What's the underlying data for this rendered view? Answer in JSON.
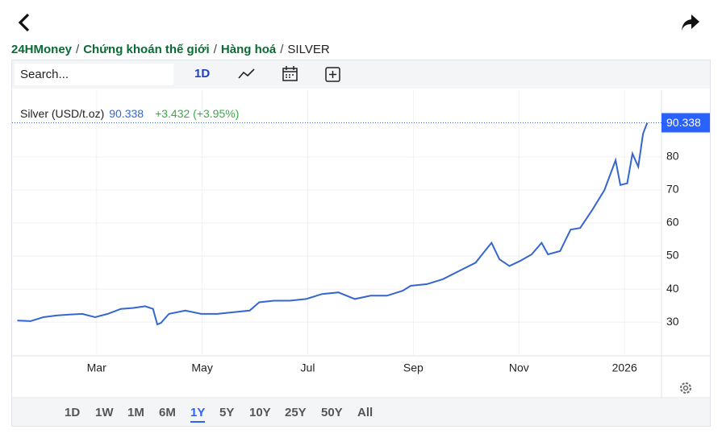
{
  "breadcrumb": {
    "items": [
      "24HMoney",
      "Chứng khoán thế giới",
      "Hàng hoá",
      "SILVER"
    ],
    "separator": "/"
  },
  "toolbar": {
    "search_placeholder": "Search...",
    "interval": "1D"
  },
  "ranges": {
    "items": [
      "1D",
      "1W",
      "1M",
      "6M",
      "1Y",
      "5Y",
      "10Y",
      "25Y",
      "50Y",
      "All"
    ],
    "selected_index": 4
  },
  "chart_data": {
    "type": "line",
    "change": "+3.432 (+3.95%)",
    "x": [
      1.5,
      1.75,
      1.99,
      2.24,
      2.48,
      2.73,
      2.97,
      3.21,
      3.46,
      3.7,
      3.92,
      4.07,
      4.15,
      4.22,
      4.37,
      4.68,
      4.98,
      5.29,
      5.6,
      5.9,
      6.08,
      6.36,
      6.66,
      6.97,
      7.27,
      7.58,
      7.89,
      8.19,
      8.5,
      8.8,
      8.95,
      9.26,
      9.56,
      9.87,
      10.18,
      10.33,
      10.48,
      10.63,
      10.82,
      11.02,
      11.24,
      11.43,
      11.55,
      11.78,
      11.98,
      12.16,
      12.39,
      12.62,
      12.83,
      12.92,
      13.05,
      13.15,
      13.26,
      13.35,
      13.43
    ],
    "series": [
      {
        "name": "Silver (USD/t.oz)",
        "color": "#3566cf",
        "values": [
          30.5,
          30.3,
          31.5,
          32,
          32.3,
          32.5,
          31.5,
          32.5,
          34,
          34.3,
          34.8,
          34,
          29.3,
          29.8,
          32.5,
          33.5,
          32.5,
          32.5,
          33,
          33.5,
          36,
          36.5,
          36.5,
          37,
          38.5,
          39,
          37,
          38,
          38,
          39.5,
          41,
          41.5,
          43,
          45.5,
          48,
          51,
          54,
          49,
          47,
          48.5,
          50.5,
          54,
          50.5,
          51.5,
          58,
          58.5,
          64,
          70,
          79,
          71.5,
          72,
          81,
          77,
          87,
          90.338
        ]
      }
    ],
    "xlim": [
      1.4,
      13.7
    ],
    "xticks": [
      {
        "value": 3,
        "label": "Mar"
      },
      {
        "value": 5,
        "label": "May"
      },
      {
        "value": 7,
        "label": "Jul"
      },
      {
        "value": 9,
        "label": "Sep"
      },
      {
        "value": 11,
        "label": "Nov"
      },
      {
        "value": 13,
        "label": "2026"
      }
    ],
    "ylim": [
      19.8,
      100.2
    ],
    "yticks": [
      30,
      40,
      50,
      60,
      70,
      80
    ],
    "grid": true,
    "price_label_color": "#2962ff"
  }
}
